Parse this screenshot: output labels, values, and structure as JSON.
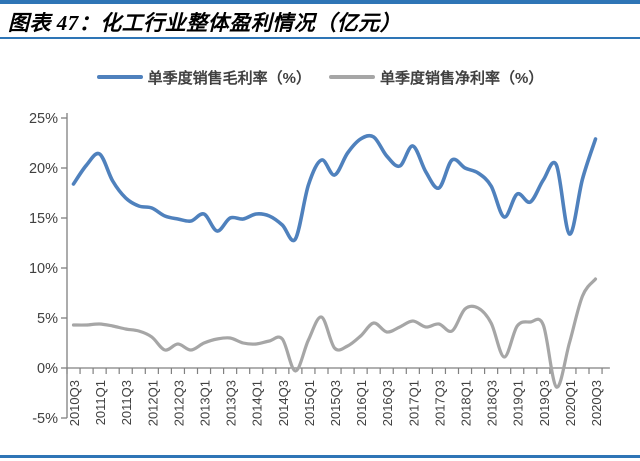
{
  "header": {
    "title": "图表 47：化工行业整体盈利情况（亿元）"
  },
  "colors": {
    "frame_rule_blue": "#2E75B6",
    "series_gross_blue": "#4F81BD",
    "series_net_gray": "#A6A6A6",
    "axis_line": "#808080",
    "tick_text": "#404040"
  },
  "legend": [
    {
      "label": "单季度销售毛利率（%）",
      "series": "gross_margin"
    },
    {
      "label": "单季度销售净利率（%）",
      "series": "net_margin"
    }
  ],
  "chart_data": {
    "type": "line",
    "title": "图表 47：化工行业整体盈利情况（亿元）",
    "xlabel": "",
    "ylabel": "",
    "grid": false,
    "smooth": true,
    "legend_position": "top",
    "ylim": [
      -5,
      25
    ],
    "y_ticks": [
      {
        "value": 25,
        "label": "25%"
      },
      {
        "value": 20,
        "label": "20%"
      },
      {
        "value": 15,
        "label": "15%"
      },
      {
        "value": 10,
        "label": "10%"
      },
      {
        "value": 5,
        "label": "5%"
      },
      {
        "value": 0,
        "label": "0%"
      },
      {
        "value": -5,
        "label": "-5%"
      }
    ],
    "x": [
      "2010Q3",
      "2010Q4",
      "2011Q1",
      "2011Q2",
      "2011Q3",
      "2011Q4",
      "2012Q1",
      "2012Q2",
      "2012Q3",
      "2012Q4",
      "2013Q1",
      "2013Q2",
      "2013Q3",
      "2013Q4",
      "2014Q1",
      "2014Q2",
      "2014Q3",
      "2014Q4",
      "2015Q1",
      "2015Q2",
      "2015Q3",
      "2015Q4",
      "2016Q1",
      "2016Q2",
      "2016Q3",
      "2016Q4",
      "2017Q1",
      "2017Q2",
      "2017Q3",
      "2017Q4",
      "2018Q1",
      "2018Q2",
      "2018Q3",
      "2018Q4",
      "2019Q1",
      "2019Q2",
      "2019Q3",
      "2019Q4",
      "2020Q1",
      "2020Q2",
      "2020Q3"
    ],
    "x_tick_labels": [
      "2010Q3",
      "2011Q1",
      "2011Q3",
      "2012Q1",
      "2012Q3",
      "2013Q1",
      "2013Q3",
      "2014Q1",
      "2014Q3",
      "2015Q1",
      "2015Q3",
      "2016Q1",
      "2016Q3",
      "2017Q1",
      "2017Q3",
      "2018Q1",
      "2018Q3",
      "2019Q1",
      "2019Q3",
      "2020Q1",
      "2020Q3"
    ],
    "series": [
      {
        "name": "单季度销售毛利率（%）",
        "color": "#4F81BD",
        "values": [
          18.4,
          20.3,
          21.4,
          18.7,
          17.0,
          16.2,
          16.0,
          15.2,
          14.9,
          14.7,
          15.4,
          13.7,
          15.0,
          14.9,
          15.4,
          15.2,
          14.3,
          12.9,
          18.3,
          20.8,
          19.3,
          21.5,
          22.9,
          23.1,
          21.2,
          20.2,
          22.2,
          19.6,
          18.0,
          20.8,
          20.0,
          19.5,
          18.2,
          15.1,
          17.4,
          16.6,
          18.8,
          20.3,
          13.4,
          18.9,
          22.9
        ]
      },
      {
        "name": "单季度销售净利率（%）",
        "color": "#A6A6A6",
        "values": [
          4.3,
          4.3,
          4.4,
          4.2,
          3.9,
          3.7,
          3.1,
          1.8,
          2.4,
          1.8,
          2.5,
          2.9,
          3.0,
          2.5,
          2.4,
          2.7,
          2.9,
          -0.3,
          2.8,
          5.1,
          2.0,
          2.2,
          3.2,
          4.5,
          3.6,
          4.1,
          4.7,
          4.1,
          4.4,
          3.7,
          5.9,
          6.0,
          4.5,
          1.1,
          4.2,
          4.6,
          4.3,
          -1.9,
          2.5,
          7.2,
          8.9
        ]
      }
    ]
  }
}
